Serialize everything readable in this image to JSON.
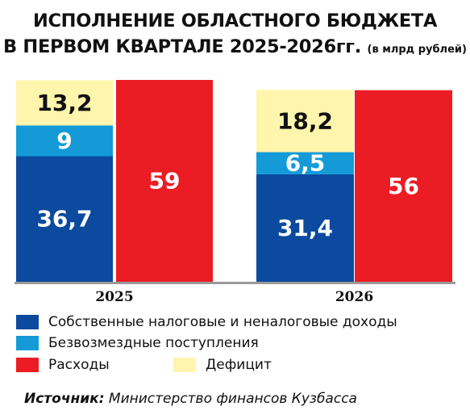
{
  "header": {
    "title_line1": "ИСПОЛНЕНИЕ ОБЛАСТНОГО БЮДЖЕТА",
    "title_line2": "В ПЕРВОМ КВАРТАЛЕ 2025-2026гг.",
    "title_note": "(в млрд рублей)"
  },
  "colors": {
    "own_revenue": "#0b4a9e",
    "grants": "#149bd7",
    "expenses": "#ec1c24",
    "deficit": "#fff5ac",
    "axis": "#9a9a9a"
  },
  "chart_data": {
    "type": "bar",
    "categories": [
      "2025",
      "2026"
    ],
    "stacked_series": [
      {
        "name": "Собственные налоговые и неналоговые доходы",
        "values": [
          36.7,
          31.4
        ],
        "labels": [
          "36,7",
          "31,4"
        ]
      },
      {
        "name": "Безвозмездные поступления",
        "values": [
          9,
          6.5
        ],
        "labels": [
          "9",
          "6,5"
        ]
      },
      {
        "name": "Дефицит",
        "values": [
          13.2,
          18.2
        ],
        "labels": [
          "13,2",
          "18,2"
        ]
      }
    ],
    "side_series": {
      "name": "Расходы",
      "values": [
        59,
        56
      ],
      "labels": [
        "59",
        "56"
      ]
    },
    "ylim": [
      0,
      59
    ],
    "grid": false,
    "legend_position": "bottom"
  },
  "legend": {
    "own_revenue": "Собственные налоговые и неналоговые доходы",
    "grants": "Безвозмездные поступления",
    "expenses": "Расходы",
    "deficit": "Дефицит"
  },
  "source": {
    "label": "Источник:",
    "text": " Министерство финансов Кузбасса"
  }
}
